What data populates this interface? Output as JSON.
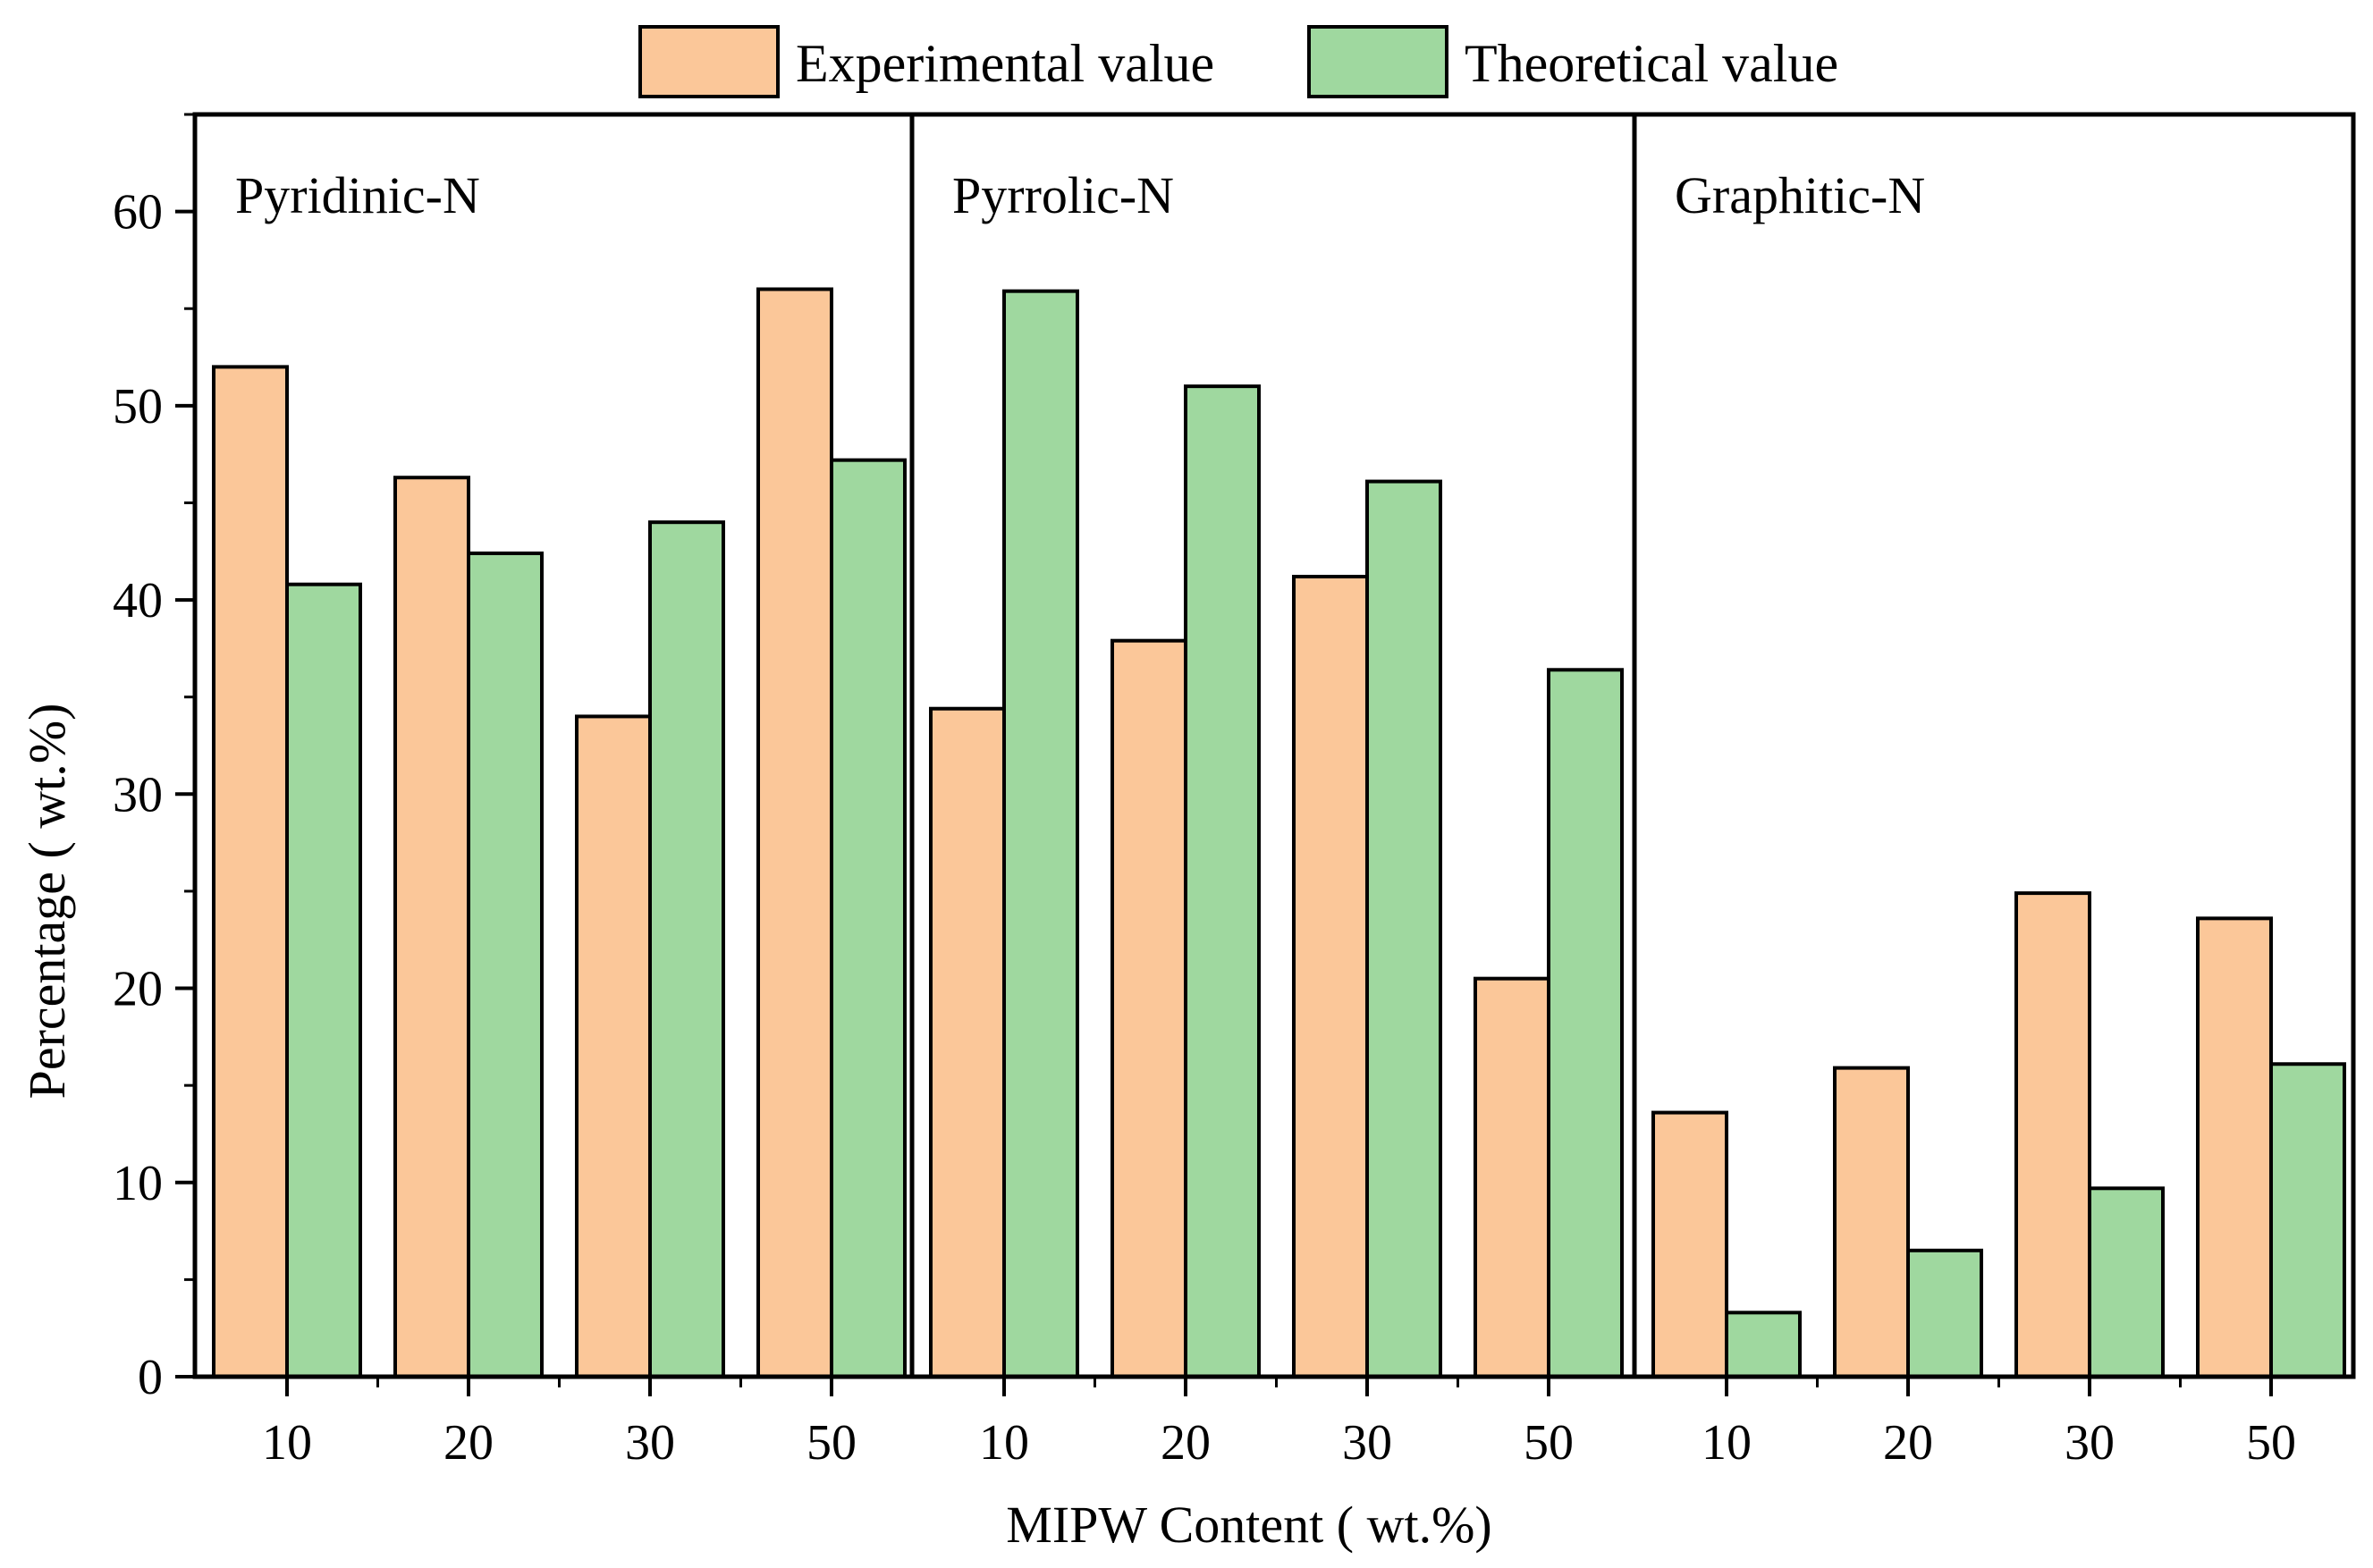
{
  "chart_data": {
    "type": "bar",
    "xlabel": "MIPW Content ( wt.%)",
    "ylabel": "Percentage ( wt.%)",
    "ylim": [
      0,
      65
    ],
    "yticks": [
      0,
      10,
      20,
      30,
      40,
      50,
      60
    ],
    "yminor_step": 5,
    "legend_position": "top-center",
    "series": [
      {
        "name": "Experimental value",
        "color": "#fbc799"
      },
      {
        "name": "Theoretical value",
        "color": "#9fd89f"
      }
    ],
    "panels": [
      {
        "label": "Pyridinic-N",
        "categories": [
          "10",
          "20",
          "30",
          "50"
        ],
        "values": {
          "Experimental value": [
            52.0,
            46.3,
            34.0,
            56.0
          ],
          "Theoretical value": [
            40.8,
            42.4,
            44.0,
            47.2
          ]
        }
      },
      {
        "label": "Pyrrolic-N",
        "categories": [
          "10",
          "20",
          "30",
          "50"
        ],
        "values": {
          "Experimental value": [
            34.4,
            37.9,
            41.2,
            20.5
          ],
          "Theoretical value": [
            55.9,
            51.0,
            46.1,
            36.4
          ]
        }
      },
      {
        "label": "Graphitic-N",
        "categories": [
          "10",
          "20",
          "30",
          "50"
        ],
        "values": {
          "Experimental value": [
            13.6,
            15.9,
            24.9,
            23.6
          ],
          "Theoretical value": [
            3.3,
            6.5,
            9.7,
            16.1
          ]
        }
      }
    ]
  }
}
